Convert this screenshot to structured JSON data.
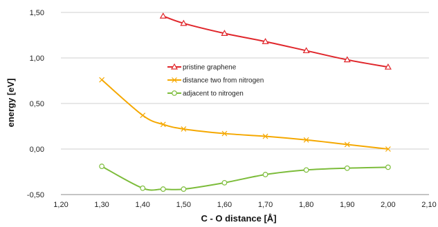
{
  "chart_data": {
    "type": "line",
    "xlabel": "C - O distance [Å]",
    "ylabel": "energy [eV]",
    "xlim": [
      1.2,
      2.1
    ],
    "ylim": [
      -0.5,
      1.5
    ],
    "xticks": [
      1.2,
      1.3,
      1.4,
      1.5,
      1.6,
      1.7,
      1.8,
      1.9,
      2.0,
      2.1
    ],
    "yticks": [
      -0.5,
      0.0,
      0.5,
      1.0,
      1.5
    ],
    "xtick_labels": [
      "1,20",
      "1,30",
      "1,40",
      "1,50",
      "1,60",
      "1,70",
      "1,80",
      "1,90",
      "2,00",
      "2,10"
    ],
    "ytick_labels": [
      "-0,50",
      "0,00",
      "0,50",
      "1,00",
      "1,50"
    ],
    "grid": "horizontal",
    "legend_position": "center",
    "series": [
      {
        "name": "pristine graphene",
        "color": "#e0262b",
        "marker": "triangle",
        "x": [
          1.45,
          1.5,
          1.6,
          1.7,
          1.8,
          1.9,
          2.0
        ],
        "y": [
          1.46,
          1.38,
          1.27,
          1.18,
          1.08,
          0.98,
          0.9
        ]
      },
      {
        "name": "distance two from nitrogen",
        "color": "#f5a800",
        "marker": "x",
        "x": [
          1.3,
          1.4,
          1.45,
          1.5,
          1.6,
          1.7,
          1.8,
          1.9,
          2.0
        ],
        "y": [
          0.76,
          0.37,
          0.27,
          0.22,
          0.17,
          0.14,
          0.1,
          0.05,
          0.0
        ]
      },
      {
        "name": "adjacent to nitrogen",
        "color": "#7cbc3a",
        "marker": "circle",
        "x": [
          1.3,
          1.4,
          1.45,
          1.5,
          1.6,
          1.7,
          1.8,
          1.9,
          2.0
        ],
        "y": [
          -0.19,
          -0.43,
          -0.44,
          -0.44,
          -0.37,
          -0.28,
          -0.23,
          -0.21,
          -0.2
        ]
      }
    ]
  }
}
